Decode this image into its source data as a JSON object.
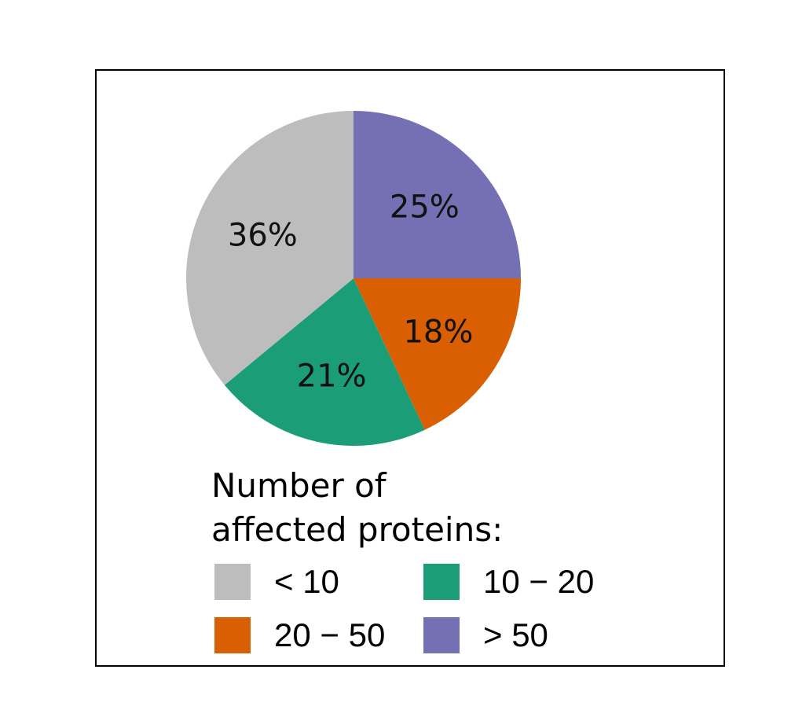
{
  "chart_data": {
    "type": "pie",
    "title": "",
    "legend_title": "Number of affected proteins:",
    "legend_title_lines": [
      "Number of",
      "affected proteins:"
    ],
    "legend_placement": "bottom",
    "slices": [
      {
        "name": "> 50",
        "value": 25,
        "label": "25%",
        "color": "#7570b3"
      },
      {
        "name": "20 − 50",
        "value": 18,
        "label": "18%",
        "color": "#d95f02"
      },
      {
        "name": "10 − 20",
        "value": 21,
        "label": "21%",
        "color": "#1b9e77"
      },
      {
        "name": "< 10",
        "value": 36,
        "label": "36%",
        "color": "#bdbdbd"
      }
    ],
    "legend_entries": [
      {
        "name": "< 10",
        "color": "#bdbdbd"
      },
      {
        "name": "10 − 20",
        "color": "#1b9e77"
      },
      {
        "name": "20 − 50",
        "color": "#d95f02"
      },
      {
        "name": "> 50",
        "color": "#7570b3"
      }
    ]
  }
}
